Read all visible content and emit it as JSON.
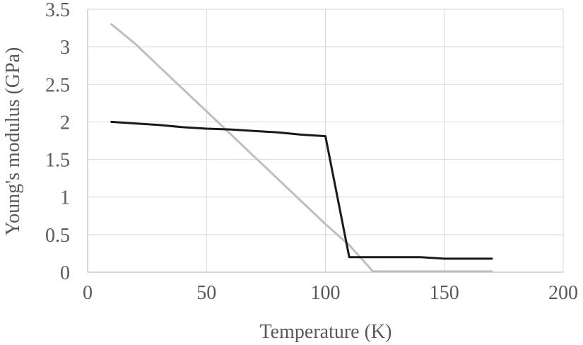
{
  "chart_data": {
    "type": "line",
    "title": "",
    "xlabel": "Temperature  (K)",
    "ylabel": "Young's modulus (GPa)",
    "xlim": [
      0,
      200
    ],
    "ylim": [
      0,
      3.5
    ],
    "x_ticks": [
      "0",
      "50",
      "100",
      "150",
      "200"
    ],
    "y_ticks": [
      "0",
      "0.5",
      "1",
      "1.5",
      "2",
      "2.5",
      "3",
      "3.5"
    ],
    "grid": true,
    "legend": "none",
    "series": [
      {
        "color": "#1a1a1a",
        "x": [
          10,
          20,
          30,
          40,
          50,
          60,
          70,
          80,
          90,
          100,
          110,
          120,
          130,
          140,
          150,
          160,
          170
        ],
        "values": [
          2.0,
          1.98,
          1.96,
          1.93,
          1.91,
          1.9,
          1.88,
          1.86,
          1.83,
          1.81,
          0.2,
          0.2,
          0.2,
          0.2,
          0.18,
          0.18,
          0.18
        ]
      },
      {
        "color": "#bfbfbf",
        "x": [
          10,
          20,
          30,
          40,
          50,
          60,
          70,
          80,
          90,
          100,
          110,
          120,
          130,
          140,
          150,
          160,
          170
        ],
        "values": [
          3.3,
          3.04,
          2.74,
          2.44,
          2.14,
          1.84,
          1.54,
          1.24,
          0.94,
          0.64,
          0.36,
          0.01,
          0.01,
          0.01,
          0.01,
          0.01,
          0.01
        ]
      }
    ]
  }
}
